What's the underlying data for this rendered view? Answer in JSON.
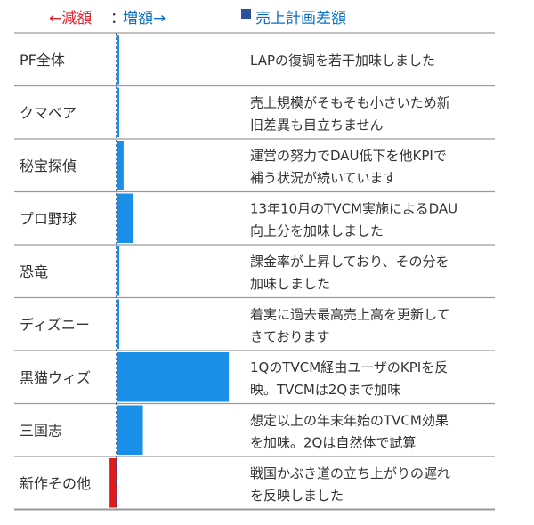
{
  "legend": {
    "decrease": "←減額",
    "separator": "：",
    "increase": "増額→",
    "series_key": "売上計画差額"
  },
  "colors": {
    "increase": "#1a8fe8",
    "decrease": "#e01919",
    "zero_line": "#1f4e9a",
    "row_border": "#9a9a9a"
  },
  "chart_data": {
    "type": "bar",
    "orientation": "horizontal",
    "series": [
      {
        "name": "売上計画差額",
        "values": [
          0.5,
          0.3,
          2.0,
          4.8,
          0.8,
          0.4,
          32.0,
          7.5,
          -2.0
        ]
      }
    ],
    "categories": [
      "PF全体",
      "クマベア",
      "秘宝探偵",
      "プロ野球",
      "恐竜",
      "ディズニー",
      "黒猫ウィズ",
      "三国志",
      "新作その他"
    ],
    "comments": [
      [
        "LAPの復調を若干加味しました"
      ],
      [
        "売上規模がそもそも小さいため新",
        "旧差異も目立ちません"
      ],
      [
        "運営の努力でDAU低下を他KPIで",
        "補う状況が続いています"
      ],
      [
        "13年10月のTVCM実施によるDAU",
        "向上分を加味しました"
      ],
      [
        "課金率が上昇しており、その分を",
        "加味しました"
      ],
      [
        "着実に過去最高売上高を更新して",
        "きております"
      ],
      [
        "1QのTVCM経由ユーザのKPIを反",
        "映。TVCMは2Qまで加味"
      ],
      [
        "想定以上の年末年始のTVCM効果",
        "を加味。2Qは自然体で試算"
      ],
      [
        "戦国かぶき道の立ち上がりの遅れ",
        "を反映しました"
      ]
    ],
    "xlim": [
      -5,
      40
    ],
    "grid": false,
    "legend_position": "top"
  }
}
